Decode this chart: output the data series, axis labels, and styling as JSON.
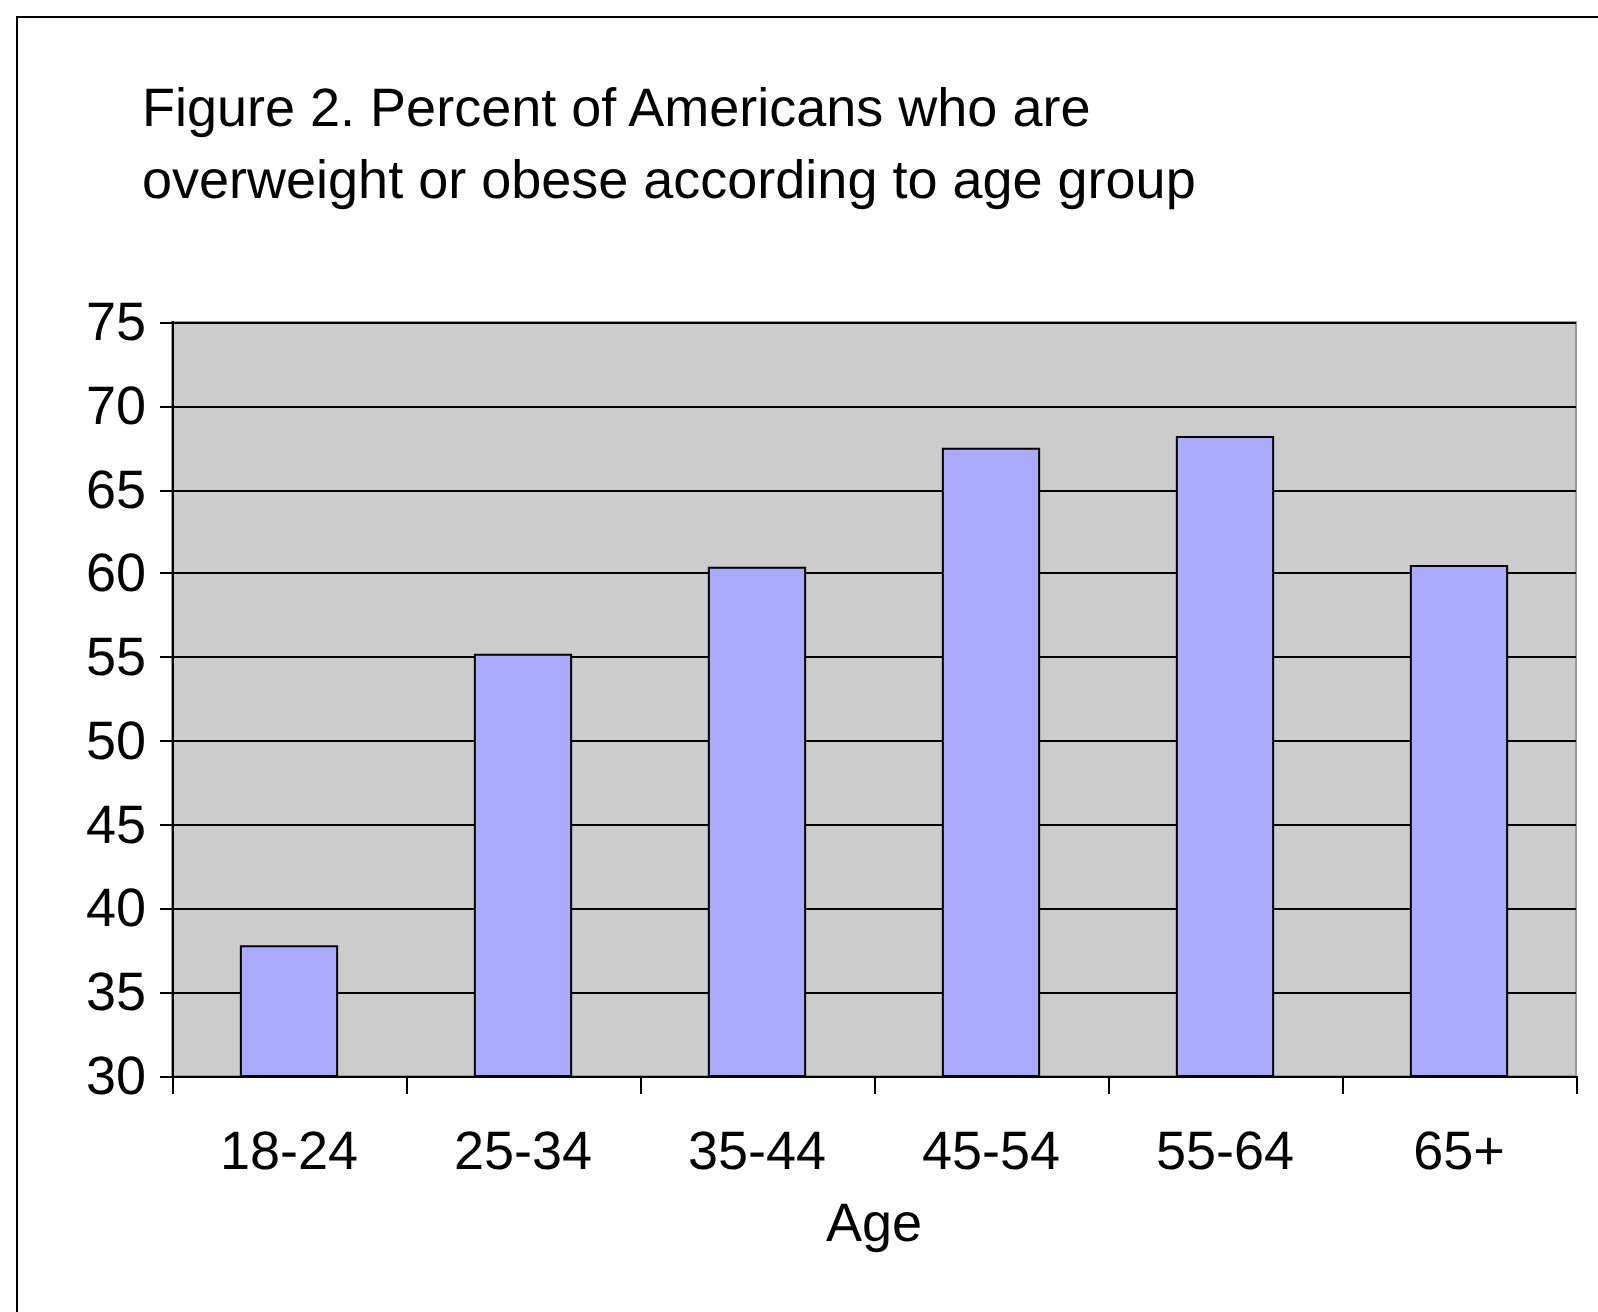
{
  "chart_data": {
    "type": "bar",
    "title": "Figure 2. Percent of Americans who are\noverweight or obese according to age group",
    "xlabel": "Age",
    "categories": [
      "18-24",
      "25-34",
      "35-44",
      "45-54",
      "55-64",
      "65+"
    ],
    "values": [
      37.8,
      55.2,
      60.4,
      67.5,
      68.2,
      60.5
    ],
    "color": "#aaaaff",
    "ylim": [
      30,
      75
    ],
    "yticks": [
      30,
      35,
      40,
      45,
      50,
      55,
      60,
      65,
      70,
      75
    ],
    "grid": "y"
  }
}
